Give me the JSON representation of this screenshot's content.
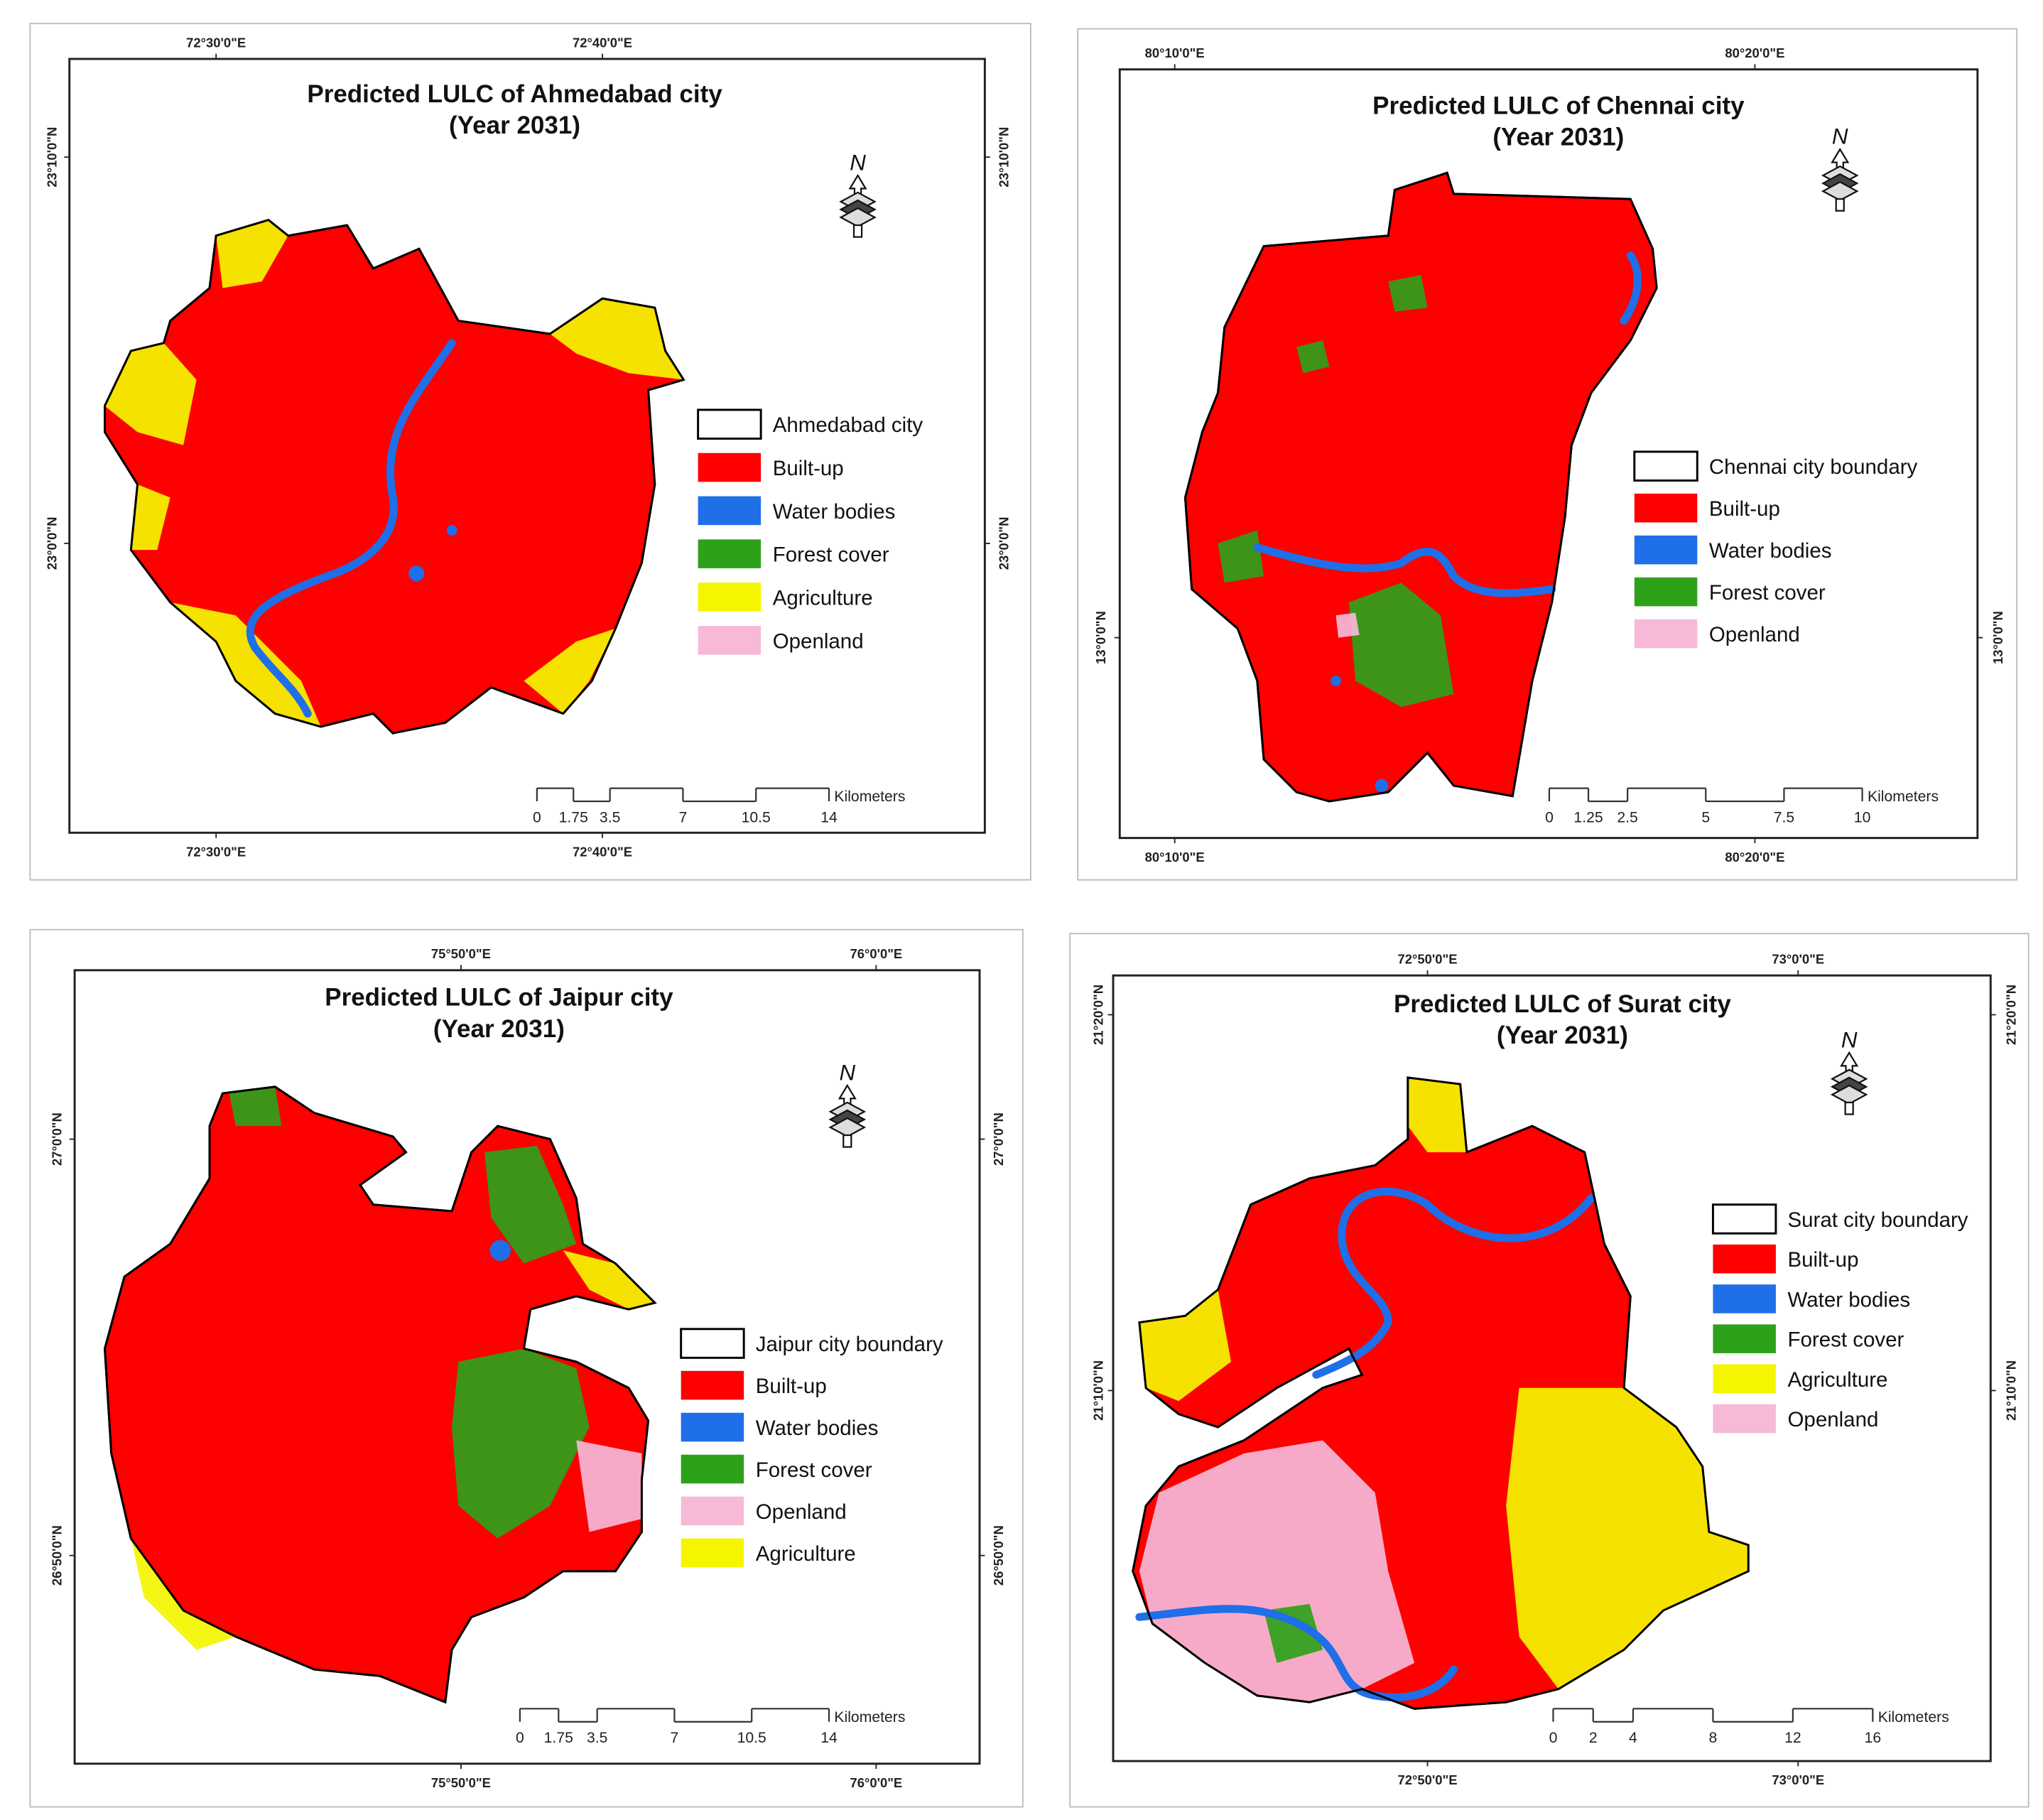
{
  "colors": {
    "built_up": "#ff0000",
    "water": "#1f6fe8",
    "forest": "#2ea11a",
    "agriculture": "#f5f500",
    "openland": "#f6b9d8",
    "boundary": "#000000"
  },
  "panels": [
    {
      "id": "ahmedabad",
      "title_line1": "Predicted LULC of Ahmedabad city",
      "title_line2": "(Year 2031)",
      "north_label": "N",
      "lon_labels": [
        "72°30'0\"E",
        "72°40'0\"E"
      ],
      "lat_labels": [
        "23°10'0\"N",
        "23°0'0\"N"
      ],
      "legend": [
        {
          "label": "Ahmedabad city",
          "color": "#ffffff"
        },
        {
          "label": "Built-up",
          "color": "#ff0000"
        },
        {
          "label": "Water bodies",
          "color": "#1f6fe8"
        },
        {
          "label": "Forest cover",
          "color": "#2ea11a"
        },
        {
          "label": "Agriculture",
          "color": "#f5f500"
        },
        {
          "label": "Openland",
          "color": "#f6b9d8"
        }
      ],
      "scale_ticks": [
        "0",
        "1.75",
        "3.5",
        "7",
        "10.5",
        "14"
      ],
      "scale_unit": "Kilometers"
    },
    {
      "id": "chennai",
      "title_line1": "Predicted LULC of Chennai city",
      "title_line2": "(Year 2031)",
      "north_label": "N",
      "lon_labels": [
        "80°10'0\"E",
        "80°20'0\"E"
      ],
      "lat_labels": [
        "13°0'0\"N"
      ],
      "legend": [
        {
          "label": "Chennai city boundary",
          "color": "#ffffff"
        },
        {
          "label": "Built-up",
          "color": "#ff0000"
        },
        {
          "label": "Water bodies",
          "color": "#1f6fe8"
        },
        {
          "label": "Forest cover",
          "color": "#2ea11a"
        },
        {
          "label": "Openland",
          "color": "#f6b9d8"
        }
      ],
      "scale_ticks": [
        "0",
        "1.25",
        "2.5",
        "5",
        "7.5",
        "10"
      ],
      "scale_unit": "Kilometers"
    },
    {
      "id": "jaipur",
      "title_line1": "Predicted LULC of Jaipur city",
      "title_line2": "(Year 2031)",
      "north_label": "N",
      "lon_labels": [
        "75°50'0\"E",
        "76°0'0\"E"
      ],
      "lat_labels": [
        "27°0'0\"N",
        "26°50'0\"N"
      ],
      "legend": [
        {
          "label": "Jaipur city boundary",
          "color": "#ffffff"
        },
        {
          "label": "Built-up",
          "color": "#ff0000"
        },
        {
          "label": "Water bodies",
          "color": "#1f6fe8"
        },
        {
          "label": "Forest cover",
          "color": "#2ea11a"
        },
        {
          "label": "Openland",
          "color": "#f6b9d8"
        },
        {
          "label": "Agriculture",
          "color": "#f5f500"
        }
      ],
      "scale_ticks": [
        "0",
        "1.75",
        "3.5",
        "7",
        "10.5",
        "14"
      ],
      "scale_unit": "Kilometers"
    },
    {
      "id": "surat",
      "title_line1": "Predicted LULC of Surat city",
      "title_line2": "(Year 2031)",
      "north_label": "N",
      "lon_labels": [
        "72°50'0\"E",
        "73°0'0\"E"
      ],
      "lat_labels": [
        "21°20'0\"N",
        "21°10'0\"N"
      ],
      "legend": [
        {
          "label": "Surat city boundary",
          "color": "#ffffff"
        },
        {
          "label": "Built-up",
          "color": "#ff0000"
        },
        {
          "label": "Water bodies",
          "color": "#1f6fe8"
        },
        {
          "label": "Forest cover",
          "color": "#2ea11a"
        },
        {
          "label": "Agriculture",
          "color": "#f5f500"
        },
        {
          "label": "Openland",
          "color": "#f6b9d8"
        }
      ],
      "scale_ticks": [
        "0",
        "2",
        "4",
        "8",
        "12",
        "16"
      ],
      "scale_unit": "Kilometers"
    }
  ]
}
